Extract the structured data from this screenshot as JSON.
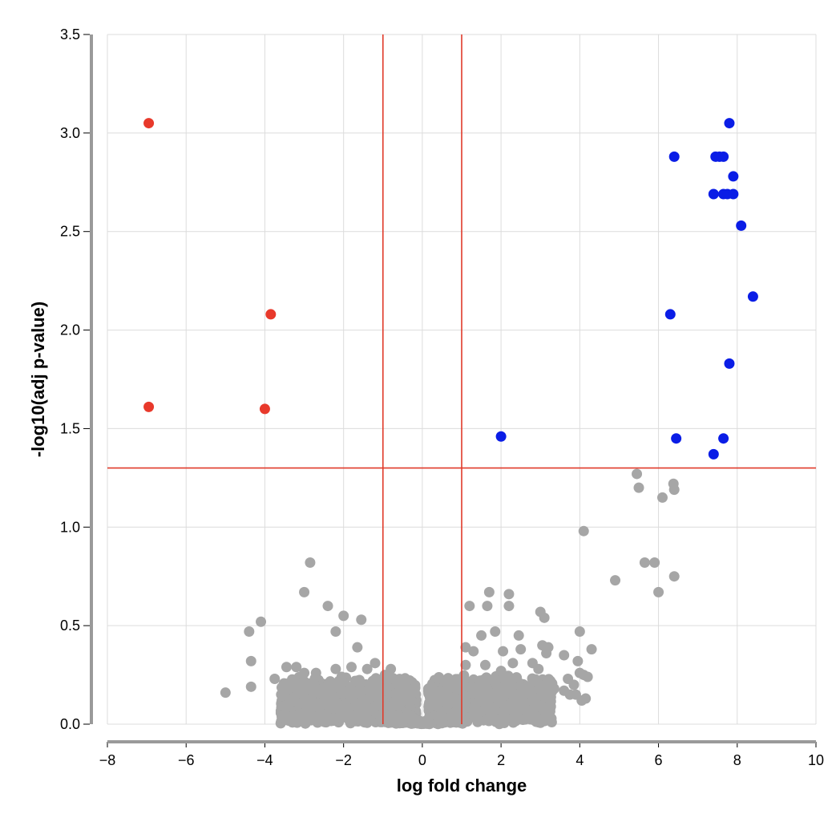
{
  "chart_data": {
    "type": "scatter",
    "title": "",
    "xlabel": "log fold change",
    "ylabel": "-log10(adj p-value)",
    "xlim": [
      -8,
      10
    ],
    "ylim": [
      0,
      3.5
    ],
    "x_ticks": [
      "−8",
      "−6",
      "−4",
      "−2",
      "0",
      "2",
      "4",
      "6",
      "8",
      "10"
    ],
    "y_ticks": [
      "0.0",
      "0.5",
      "1.0",
      "1.5",
      "2.0",
      "2.5",
      "3.0",
      "3.5"
    ],
    "grid": true,
    "threshold_lines": {
      "x": [
        -1,
        1
      ],
      "y": [
        1.3
      ]
    },
    "colors": {
      "down": "#e8392b",
      "up": "#0a1de6",
      "ns": "#a6a6a6",
      "threshold": "#e03a2a"
    },
    "series": [
      {
        "color": "#e8392b",
        "points": [
          [
            -6.95,
            3.05
          ],
          [
            -3.85,
            2.08
          ],
          [
            -6.95,
            1.61
          ],
          [
            -4.0,
            1.6
          ]
        ]
      },
      {
        "color": "#0a1de6",
        "points": [
          [
            7.8,
            3.05
          ],
          [
            6.4,
            2.88
          ],
          [
            7.45,
            2.88
          ],
          [
            7.55,
            2.88
          ],
          [
            7.65,
            2.88
          ],
          [
            7.9,
            2.78
          ],
          [
            7.4,
            2.69
          ],
          [
            7.65,
            2.69
          ],
          [
            7.75,
            2.69
          ],
          [
            7.9,
            2.69
          ],
          [
            8.1,
            2.53
          ],
          [
            8.4,
            2.17
          ],
          [
            6.3,
            2.08
          ],
          [
            7.8,
            1.83
          ],
          [
            2.0,
            1.46
          ],
          [
            6.45,
            1.45
          ],
          [
            7.65,
            1.45
          ],
          [
            7.4,
            1.37
          ]
        ]
      },
      {
        "color": "#a6a6a6",
        "points": [
          [
            5.45,
            1.27
          ],
          [
            5.5,
            1.2
          ],
          [
            6.38,
            1.22
          ],
          [
            6.4,
            1.19
          ],
          [
            6.1,
            1.15
          ],
          [
            4.1,
            0.98
          ],
          [
            5.65,
            0.82
          ],
          [
            5.9,
            0.82
          ],
          [
            4.9,
            0.73
          ],
          [
            6.4,
            0.75
          ],
          [
            6.0,
            0.67
          ],
          [
            -2.85,
            0.82
          ],
          [
            -3.0,
            0.67
          ],
          [
            -2.4,
            0.6
          ],
          [
            -2.0,
            0.55
          ],
          [
            -1.55,
            0.53
          ],
          [
            -4.1,
            0.52
          ],
          [
            -4.4,
            0.47
          ],
          [
            -2.2,
            0.47
          ],
          [
            -1.65,
            0.39
          ],
          [
            -4.35,
            0.32
          ],
          [
            -3.45,
            0.29
          ],
          [
            -3.2,
            0.29
          ],
          [
            -2.7,
            0.26
          ],
          [
            -3.0,
            0.26
          ],
          [
            -2.2,
            0.28
          ],
          [
            -1.8,
            0.29
          ],
          [
            -1.2,
            0.31
          ],
          [
            -3.75,
            0.23
          ],
          [
            -4.35,
            0.19
          ],
          [
            -5.0,
            0.16
          ],
          [
            1.2,
            0.6
          ],
          [
            1.7,
            0.67
          ],
          [
            2.2,
            0.66
          ],
          [
            1.65,
            0.6
          ],
          [
            2.2,
            0.6
          ],
          [
            3.0,
            0.57
          ],
          [
            3.1,
            0.54
          ],
          [
            1.5,
            0.45
          ],
          [
            1.85,
            0.47
          ],
          [
            2.45,
            0.45
          ],
          [
            4.0,
            0.47
          ],
          [
            1.1,
            0.39
          ],
          [
            1.3,
            0.37
          ],
          [
            2.05,
            0.37
          ],
          [
            2.5,
            0.38
          ],
          [
            3.05,
            0.4
          ],
          [
            3.2,
            0.39
          ],
          [
            3.15,
            0.36
          ],
          [
            3.6,
            0.35
          ],
          [
            4.3,
            0.38
          ],
          [
            2.3,
            0.31
          ],
          [
            2.8,
            0.31
          ],
          [
            2.95,
            0.28
          ],
          [
            3.95,
            0.32
          ],
          [
            4.0,
            0.26
          ],
          [
            4.1,
            0.25
          ],
          [
            4.2,
            0.24
          ],
          [
            3.7,
            0.23
          ],
          [
            3.85,
            0.2
          ],
          [
            3.35,
            0.18
          ],
          [
            3.6,
            0.17
          ],
          [
            3.9,
            0.15
          ],
          [
            4.15,
            0.13
          ],
          [
            4.05,
            0.12
          ],
          [
            3.75,
            0.15
          ],
          [
            2.0,
            0.27
          ],
          [
            1.6,
            0.3
          ],
          [
            1.1,
            0.3
          ],
          [
            -0.8,
            0.28
          ],
          [
            -0.95,
            0.25
          ],
          [
            -1.4,
            0.28
          ],
          [
            -2.05,
            0.24
          ]
        ],
        "bands": [
          {
            "x_from": -3.6,
            "x_to": -0.15,
            "base": 0.1,
            "height": 0.16
          },
          {
            "x_from": 0.15,
            "x_to": 3.3,
            "base": 0.1,
            "height": 0.17
          }
        ]
      }
    ]
  }
}
